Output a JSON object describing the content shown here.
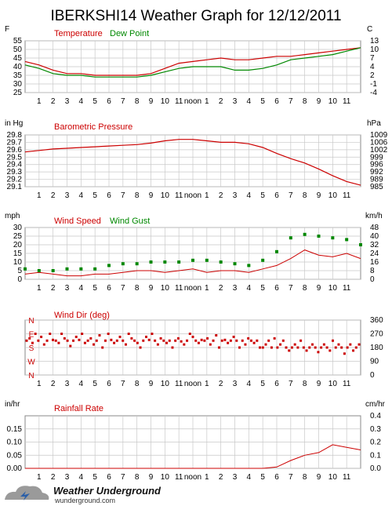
{
  "page": {
    "title": "IBERKSHI14 Weather Graph for 12/12/2011"
  },
  "hour_labels": [
    "1",
    "2",
    "3",
    "4",
    "5",
    "6",
    "7",
    "8",
    "9",
    "10",
    "11",
    "noon",
    "1",
    "2",
    "3",
    "4",
    "5",
    "6",
    "7",
    "8",
    "9",
    "10",
    "11"
  ],
  "branding": {
    "name": "Weather Underground",
    "url": "wunderground.com"
  },
  "colors": {
    "primary": "#cc0000",
    "secondary": "#008800",
    "grid": "#c8c8c8",
    "frame": "#888888"
  },
  "chart_data": [
    {
      "type": "line",
      "id": "temperature",
      "x": [
        0,
        1,
        2,
        3,
        4,
        5,
        6,
        7,
        8,
        9,
        10,
        11,
        12,
        13,
        14,
        15,
        16,
        17,
        18,
        19,
        20,
        21,
        22,
        23,
        24
      ],
      "series": [
        {
          "name": "Temperature",
          "values": [
            43,
            41,
            38,
            36,
            36,
            35,
            35,
            35,
            35,
            36,
            39,
            42,
            43,
            44,
            45,
            44,
            44,
            45,
            46,
            46,
            47,
            48,
            49,
            50,
            51
          ]
        },
        {
          "name": "Dew Point",
          "values": [
            41,
            39,
            36,
            35,
            35,
            34,
            34,
            34,
            34,
            35,
            37,
            39,
            40,
            40,
            40,
            38,
            38,
            39,
            41,
            44,
            45,
            46,
            47,
            49,
            51
          ]
        }
      ],
      "ylabel": "F",
      "ylabel_right": "C",
      "ylim": [
        25,
        55
      ],
      "yticks": [
        "25",
        "30",
        "35",
        "40",
        "45",
        "50",
        "55"
      ],
      "yticks_right": [
        "-4",
        "-1",
        "2",
        "4",
        "7",
        "10",
        "13"
      ],
      "grid": true
    },
    {
      "type": "line",
      "id": "pressure",
      "x": [
        0,
        1,
        2,
        3,
        4,
        5,
        6,
        7,
        8,
        9,
        10,
        11,
        12,
        13,
        14,
        15,
        16,
        17,
        18,
        19,
        20,
        21,
        22,
        23,
        24
      ],
      "series": [
        {
          "name": "Barometric Pressure",
          "values": [
            29.57,
            29.59,
            29.61,
            29.62,
            29.63,
            29.64,
            29.65,
            29.66,
            29.67,
            29.69,
            29.72,
            29.74,
            29.74,
            29.72,
            29.7,
            29.7,
            29.68,
            29.63,
            29.55,
            29.48,
            29.42,
            29.34,
            29.25,
            29.17,
            29.12
          ]
        }
      ],
      "ylabel": "in Hg",
      "ylabel_right": "hPa",
      "ylim": [
        29.1,
        29.8
      ],
      "yticks": [
        "29.1",
        "29.2",
        "29.3",
        "29.4",
        "29.5",
        "29.6",
        "29.7",
        "29.8"
      ],
      "yticks_right": [
        "985",
        "989",
        "992",
        "996",
        "999",
        "1002",
        "1006",
        "1009"
      ],
      "grid": true
    },
    {
      "type": "line",
      "id": "wind",
      "x": [
        0,
        1,
        2,
        3,
        4,
        5,
        6,
        7,
        8,
        9,
        10,
        11,
        12,
        13,
        14,
        15,
        16,
        17,
        18,
        19,
        20,
        21,
        22,
        23,
        24
      ],
      "series": [
        {
          "name": "Wind Speed",
          "values": [
            3,
            4,
            3,
            2,
            2,
            3,
            3,
            4,
            5,
            5,
            4,
            5,
            6,
            4,
            5,
            5,
            4,
            6,
            8,
            12,
            17,
            14,
            13,
            15,
            12
          ]
        },
        {
          "name": "Wind Gust",
          "values": [
            6,
            5,
            5,
            6,
            6,
            6,
            8,
            9,
            9,
            10,
            10,
            10,
            11,
            11,
            10,
            9,
            8,
            11,
            16,
            24,
            26,
            25,
            24,
            23,
            20
          ]
        }
      ],
      "ylabel": "mph",
      "ylabel_right": "km/h",
      "ylim": [
        0,
        30
      ],
      "yticks": [
        "0",
        "5",
        "10",
        "15",
        "20",
        "25",
        "30"
      ],
      "yticks_right": [
        "0",
        "8",
        "16",
        "24",
        "32",
        "40",
        "48"
      ],
      "grid": true
    },
    {
      "type": "scatter",
      "id": "winddir",
      "series": [
        {
          "name": "Wind Dir (deg)",
          "values": [
            225,
            240,
            210,
            270,
            225,
            250,
            200,
            225,
            270,
            230,
            225,
            210,
            270,
            240,
            225,
            190,
            225,
            250,
            230,
            270,
            210,
            225,
            240,
            200,
            225,
            260,
            180,
            225,
            270,
            230,
            210,
            225,
            250,
            225,
            200,
            270,
            240,
            225,
            210,
            180,
            225,
            250,
            230,
            270,
            225,
            200,
            240,
            225,
            210,
            225,
            180,
            225,
            240,
            220,
            200,
            225,
            270,
            250,
            225,
            210,
            230,
            225,
            240,
            200,
            225,
            260,
            180,
            225,
            230,
            210,
            225,
            250,
            225,
            180,
            225,
            200,
            240,
            225,
            210,
            225,
            180,
            180,
            200,
            225,
            180,
            240,
            180,
            200,
            225,
            180,
            160,
            180,
            200,
            180,
            225,
            180,
            160,
            180,
            200,
            180,
            150,
            180,
            200,
            180,
            160,
            225,
            180,
            200,
            180,
            140,
            180,
            200,
            160,
            180,
            200
          ]
        }
      ],
      "ylabel_right_ticks": [
        "0",
        "90",
        "180",
        "270",
        "360"
      ],
      "compass": [
        "N",
        "W",
        "S",
        "E",
        "N"
      ],
      "ylim": [
        0,
        360
      ],
      "grid": true
    },
    {
      "type": "line",
      "id": "rain",
      "x": [
        0,
        1,
        2,
        3,
        4,
        5,
        6,
        7,
        8,
        9,
        10,
        11,
        12,
        13,
        14,
        15,
        16,
        17,
        18,
        19,
        20,
        21,
        22,
        23,
        24
      ],
      "series": [
        {
          "name": "Rainfall Rate",
          "values": [
            0,
            0,
            0,
            0,
            0,
            0,
            0,
            0,
            0,
            0,
            0,
            0,
            0,
            0,
            0,
            0,
            0,
            0,
            0.005,
            0.03,
            0.05,
            0.06,
            0.09,
            0.08,
            0.07
          ]
        }
      ],
      "ylabel": "in/hr",
      "ylabel_right": "cm/hr",
      "ylim": [
        0,
        0.2
      ],
      "yticks": [
        "0.00",
        "0.05",
        "0.10",
        "0.15"
      ],
      "yticks_right": [
        "0.0",
        "0.1",
        "0.2",
        "0.3",
        "0.4"
      ],
      "grid": true
    }
  ]
}
